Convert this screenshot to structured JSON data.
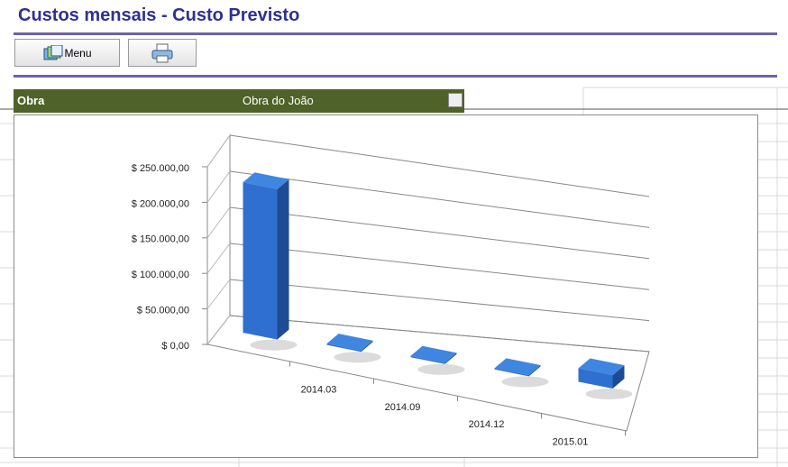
{
  "header": {
    "title": "Custos mensais - Custo Previsto"
  },
  "buttons": {
    "menu": "Menu"
  },
  "filter_row": {
    "label": "Obra",
    "value": "Obra do João"
  },
  "chart_data": {
    "type": "bar3d",
    "categories": [
      null,
      "2014.03",
      "2014.09",
      "2014.12",
      "2015.01"
    ],
    "values": [
      220000,
      2000,
      2000,
      2000,
      22000
    ],
    "color": "#2f6fd0",
    "ylim": [
      0,
      250000
    ],
    "yticks": [
      {
        "value": 0,
        "label": "$ 0,00"
      },
      {
        "value": 50000,
        "label": "$ 50.000,00"
      },
      {
        "value": 100000,
        "label": "$ 100.000,00"
      },
      {
        "value": 150000,
        "label": "$ 150.000,00"
      },
      {
        "value": 200000,
        "label": "$ 200.000,00"
      },
      {
        "value": 250000,
        "label": "$ 250.000,00"
      }
    ],
    "grid": true
  }
}
